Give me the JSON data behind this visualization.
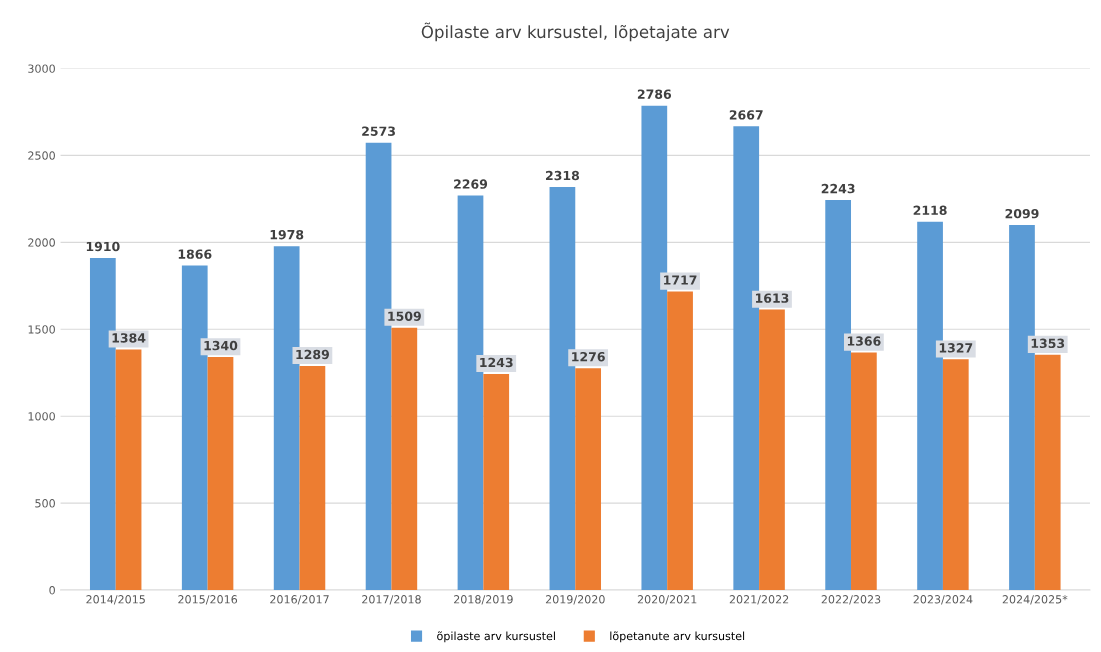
{
  "chart_data": {
    "type": "bar",
    "title": "Õpilaste arv kursustel, lõpetajate arv",
    "categories": [
      "2014/2015",
      "2015/2016",
      "2016/2017",
      "2017/2018",
      "2018/2019",
      "2019/2020",
      "2020/2021",
      "2021/2022",
      "2022/2023",
      "2023/2024",
      "2024/2025*"
    ],
    "series": [
      {
        "name": "õpilaste arv kursustel",
        "color": "#5b9bd5",
        "values": [
          1910,
          1866,
          1978,
          2573,
          2269,
          2318,
          2786,
          2667,
          2243,
          2118,
          2099
        ]
      },
      {
        "name": "lõpetanute arv kursustel",
        "color": "#ed7d31",
        "values": [
          1384,
          1340,
          1289,
          1509,
          1243,
          1276,
          1717,
          1613,
          1366,
          1327,
          1353
        ]
      }
    ],
    "ylim": [
      0,
      3000
    ],
    "yticks": [
      0,
      500,
      1000,
      1500,
      2000,
      2500,
      3000
    ],
    "grid": "y",
    "legend": "bottom",
    "data_labels": true
  }
}
